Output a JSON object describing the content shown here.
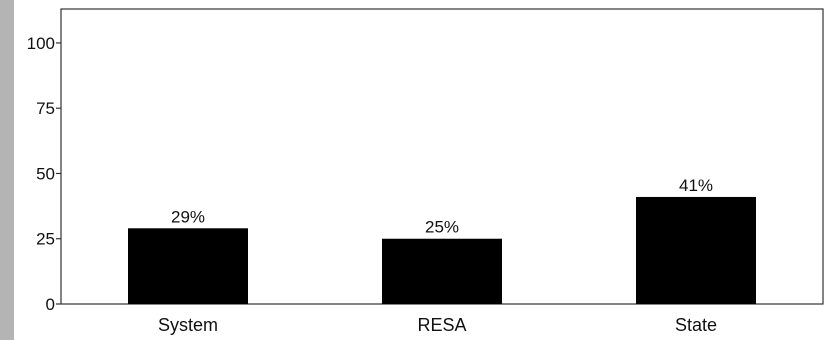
{
  "colors": {
    "bar": "#000000",
    "axis": "#333333",
    "side_strip": "#b4b4b4"
  },
  "chart_data": {
    "type": "bar",
    "categories": [
      "System",
      "RESA",
      "State"
    ],
    "values": [
      29,
      25,
      41
    ],
    "data_labels": [
      "29%",
      "25%",
      "41%"
    ],
    "yticks": [
      0,
      25,
      50,
      75,
      100
    ],
    "ytick_labels": [
      "0",
      "25",
      "50",
      "75",
      "100"
    ],
    "ylim": [
      0,
      113
    ],
    "title": "",
    "xlabel": "",
    "ylabel": "",
    "grid": false,
    "legend": "none"
  }
}
